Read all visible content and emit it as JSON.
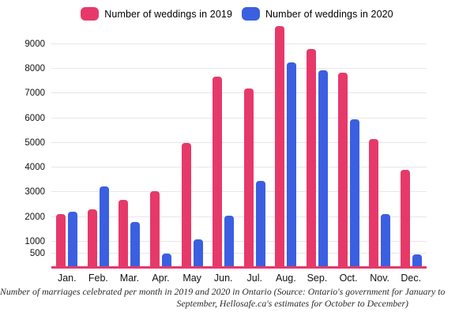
{
  "chart_data": {
    "type": "bar",
    "title": "",
    "xlabel": "",
    "ylabel": "",
    "categories": [
      "Jan.",
      "Feb.",
      "Mar.",
      "Apr.",
      "May",
      "Jun.",
      "Jul.",
      "Aug.",
      "Sep.",
      "Oct.",
      "Nov.",
      "Dec."
    ],
    "series": [
      {
        "name": "Number of weddings in 2019",
        "color": "#e6396a",
        "values": [
          2100,
          2300,
          2700,
          3050,
          5000,
          7700,
          7200,
          9750,
          8800,
          7850,
          5150,
          3900
        ]
      },
      {
        "name": "Number of weddings in 2020",
        "color": "#3b5fe1",
        "values": [
          2200,
          3250,
          1800,
          500,
          1100,
          2050,
          3450,
          8250,
          7950,
          5950,
          2100,
          480
        ]
      }
    ],
    "yticks": [
      500,
      1000,
      2000,
      3000,
      4000,
      5000,
      6000,
      7000,
      8000,
      9000
    ],
    "ylim": [
      0,
      9800
    ],
    "grid": true,
    "legend_position": "top",
    "gridline_color": "#e7e7e7",
    "axis_line_color": "#e6396a"
  },
  "caption": {
    "line1": "Number of marriages celebrated per month in 2019 and 2020 in Ontario (Source: Ontario's government for January to",
    "line2": "September, Hellosafe.ca's estimates for October to December)"
  }
}
